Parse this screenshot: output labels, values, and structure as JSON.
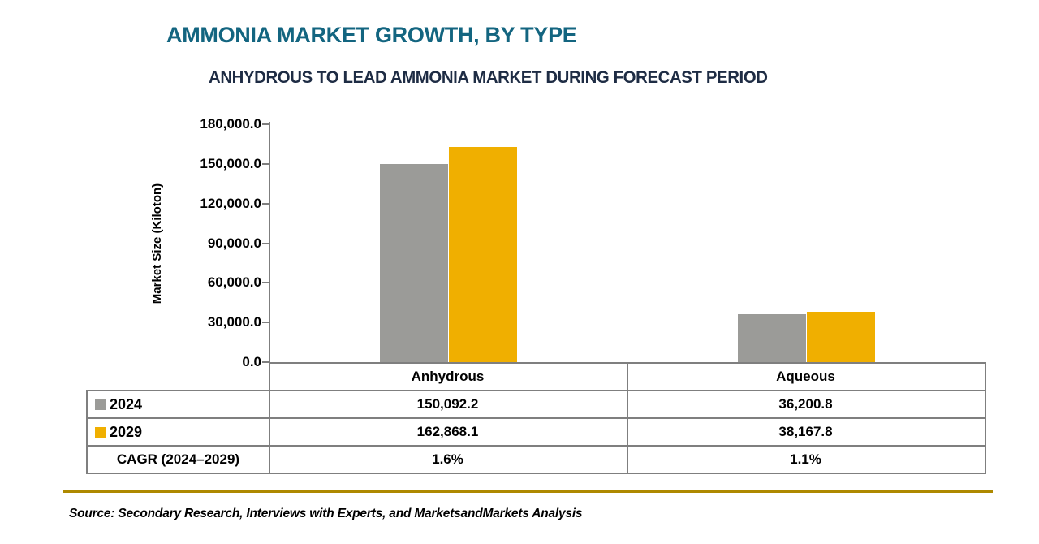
{
  "header": {
    "title": "AMMONIA MARKET GROWTH, BY TYPE",
    "subtitle": "ANHYDROUS TO LEAD AMMONIA MARKET DURING FORECAST PERIOD"
  },
  "chart_data": {
    "type": "bar",
    "title": "AMMONIA MARKET GROWTH, BY TYPE",
    "subtitle": "ANHYDROUS TO LEAD AMMONIA MARKET DURING FORECAST PERIOD",
    "ylabel": "Market Size (Kiloton)",
    "ylim": [
      0,
      180000
    ],
    "ytick_step": 30000,
    "ytick_labels": [
      "180,000.0",
      "150,000.0",
      "120,000.0",
      "90,000.0",
      "60,000.0",
      "30,000.0",
      "0.0"
    ],
    "categories": [
      "Anhydrous",
      "Aqueous"
    ],
    "series": [
      {
        "name": "2024",
        "color": "#9B9B98",
        "values": [
          150092.2,
          36200.8
        ],
        "display": [
          "150,092.2",
          "36,200.8"
        ]
      },
      {
        "name": "2029",
        "color": "#F0AF00",
        "values": [
          162868.1,
          38167.8
        ],
        "display": [
          "162,868.1",
          "38,167.8"
        ]
      }
    ],
    "cagr_row": {
      "label": "CAGR (2024–2029)",
      "values": [
        "1.6%",
        "1.1%"
      ]
    },
    "legend_position": "table-left",
    "grid": false,
    "axis_color": "#7F7F7F"
  },
  "footer": {
    "source": "Source: Secondary Research, Interviews with Experts, and MarketsandMarkets Analysis",
    "rule_color": "#AE8900"
  }
}
